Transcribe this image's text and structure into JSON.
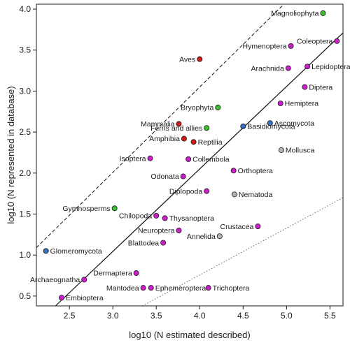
{
  "chart_data": {
    "type": "scatter",
    "xlabel": "log10 (N estimated described)",
    "ylabel": "log10 (N represented in database)",
    "xlim": [
      2.12,
      5.65
    ],
    "ylim": [
      0.38,
      4.06
    ],
    "x_ticks": [
      "2.5",
      "3.0",
      "3.5",
      "4.0",
      "4.5",
      "5.0",
      "5.5"
    ],
    "y_ticks": [
      "0.5",
      "1.0",
      "1.5",
      "2.0",
      "2.5",
      "3.0",
      "3.5",
      "4.0"
    ],
    "grid": false,
    "legend": "none",
    "colors": {
      "red": "#d11a14",
      "green": "#35c02c",
      "blue": "#2f6fc4",
      "magenta": "#cc1fcc",
      "gray": "#b4b4b4"
    },
    "lines": [
      {
        "style": "dashed",
        "x": [
          2.12,
          4.97
        ],
        "y": [
          1.09,
          4.06
        ]
      },
      {
        "style": "solid",
        "x": [
          2.34,
          5.65
        ],
        "y": [
          0.38,
          3.71
        ]
      },
      {
        "style": "dotted",
        "x": [
          3.34,
          5.65
        ],
        "y": [
          0.38,
          1.7
        ]
      }
    ],
    "points": [
      {
        "label": "Magnoliophyta",
        "x": 5.42,
        "y": 3.95,
        "color": "green",
        "lp": "left"
      },
      {
        "label": "Coleoptera",
        "x": 5.58,
        "y": 3.61,
        "color": "magenta",
        "lp": "left"
      },
      {
        "label": "Hymenoptera",
        "x": 5.05,
        "y": 3.55,
        "color": "magenta",
        "lp": "left"
      },
      {
        "label": "Aves",
        "x": 4.0,
        "y": 3.39,
        "color": "red",
        "lp": "left"
      },
      {
        "label": "Arachnida",
        "x": 5.02,
        "y": 3.28,
        "color": "magenta",
        "lp": "left"
      },
      {
        "label": "Lepidoptera",
        "x": 5.24,
        "y": 3.3,
        "color": "magenta",
        "lp": "right"
      },
      {
        "label": "Diptera",
        "x": 5.21,
        "y": 3.05,
        "color": "magenta",
        "lp": "right"
      },
      {
        "label": "Hemiptera",
        "x": 4.93,
        "y": 2.85,
        "color": "magenta",
        "lp": "right"
      },
      {
        "label": "Bryophyta",
        "x": 4.21,
        "y": 2.8,
        "color": "green",
        "lp": "left"
      },
      {
        "label": "Ascomycota",
        "x": 4.81,
        "y": 2.61,
        "color": "blue",
        "lp": "right"
      },
      {
        "label": "Mammalia",
        "x": 3.76,
        "y": 2.6,
        "color": "red",
        "lp": "left"
      },
      {
        "label": "Basidiomycota",
        "x": 4.5,
        "y": 2.57,
        "color": "blue",
        "lp": "right"
      },
      {
        "label": "Ferns and allies",
        "x": 4.08,
        "y": 2.55,
        "color": "green",
        "lp": "left"
      },
      {
        "label": "Amphibia",
        "x": 3.82,
        "y": 2.42,
        "color": "red",
        "lp": "left"
      },
      {
        "label": "Reptilia",
        "x": 3.93,
        "y": 2.38,
        "color": "red",
        "lp": "right"
      },
      {
        "label": "Mollusca",
        "x": 4.94,
        "y": 2.28,
        "color": "gray",
        "lp": "right"
      },
      {
        "label": "Isoptera",
        "x": 3.43,
        "y": 2.18,
        "color": "magenta",
        "lp": "left"
      },
      {
        "label": "Collembola",
        "x": 3.87,
        "y": 2.17,
        "color": "magenta",
        "lp": "right"
      },
      {
        "label": "Odonata",
        "x": 3.81,
        "y": 1.96,
        "color": "magenta",
        "lp": "left"
      },
      {
        "label": "Orthoptera",
        "x": 4.39,
        "y": 2.03,
        "color": "magenta",
        "lp": "right"
      },
      {
        "label": "Diplopoda",
        "x": 4.08,
        "y": 1.78,
        "color": "magenta",
        "lp": "left"
      },
      {
        "label": "Nematoda",
        "x": 4.4,
        "y": 1.74,
        "color": "gray",
        "lp": "right"
      },
      {
        "label": "Gymnosperms",
        "x": 3.02,
        "y": 1.57,
        "color": "green",
        "lp": "left"
      },
      {
        "label": "Chilopoda",
        "x": 3.5,
        "y": 1.48,
        "color": "magenta",
        "lp": "left"
      },
      {
        "label": "Thysanoptera",
        "x": 3.6,
        "y": 1.45,
        "color": "magenta",
        "lp": "right"
      },
      {
        "label": "Crustacea",
        "x": 4.67,
        "y": 1.35,
        "color": "magenta",
        "lp": "left"
      },
      {
        "label": "Neuroptera",
        "x": 3.76,
        "y": 1.3,
        "color": "magenta",
        "lp": "left"
      },
      {
        "label": "Annelida",
        "x": 4.23,
        "y": 1.23,
        "color": "gray",
        "lp": "left"
      },
      {
        "label": "Blattodea",
        "x": 3.58,
        "y": 1.15,
        "color": "magenta",
        "lp": "left"
      },
      {
        "label": "Glomeromycota",
        "x": 2.23,
        "y": 1.05,
        "color": "blue",
        "lp": "right"
      },
      {
        "label": "Dermaptera",
        "x": 3.27,
        "y": 0.78,
        "color": "magenta",
        "lp": "left"
      },
      {
        "label": "Archaeognatha",
        "x": 2.67,
        "y": 0.7,
        "color": "magenta",
        "lp": "left"
      },
      {
        "label": "Mantodea",
        "x": 3.35,
        "y": 0.6,
        "color": "magenta",
        "lp": "left"
      },
      {
        "label": "Ephemeroptera",
        "x": 3.44,
        "y": 0.6,
        "color": "magenta",
        "lp": "right"
      },
      {
        "label": "Trichoptera",
        "x": 4.1,
        "y": 0.6,
        "color": "magenta",
        "lp": "right"
      },
      {
        "label": "Embioptera",
        "x": 2.41,
        "y": 0.48,
        "color": "magenta",
        "lp": "right"
      }
    ]
  }
}
